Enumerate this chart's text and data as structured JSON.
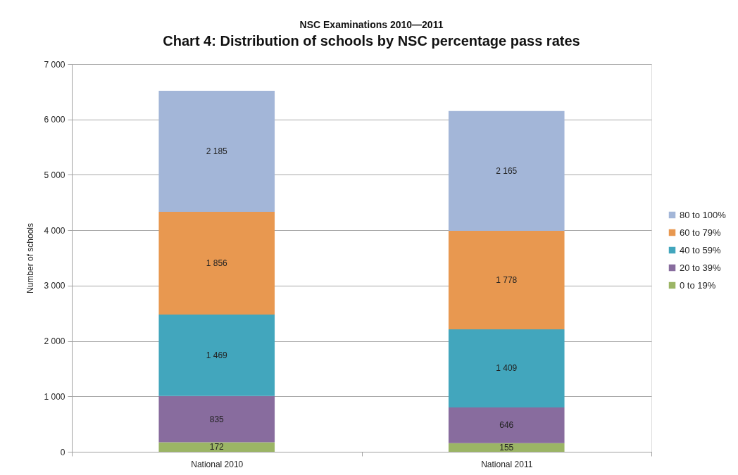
{
  "chart_data": {
    "type": "bar",
    "title": "NSC Examinations 2010—2011",
    "subtitle": "Chart 4: Distribution of schools by NSC percentage pass rates",
    "ylabel": "Number of schools",
    "categories": [
      "National 2010",
      "National 2011"
    ],
    "stacked": true,
    "series": [
      {
        "name": "0 to 19%",
        "color": "#9bb565",
        "values": [
          172,
          155
        ],
        "value_labels": [
          "172",
          "155"
        ]
      },
      {
        "name": "20 to 39%",
        "color": "#886c9e",
        "values": [
          835,
          646
        ],
        "value_labels": [
          "835",
          "646"
        ]
      },
      {
        "name": "40 to 59%",
        "color": "#42a6bd",
        "values": [
          1469,
          1409
        ],
        "value_labels": [
          "1 469",
          "1 409"
        ]
      },
      {
        "name": "60 to 79%",
        "color": "#e89850",
        "values": [
          1856,
          1778
        ],
        "value_labels": [
          "1 856",
          "1 778"
        ]
      },
      {
        "name": "80 to 100%",
        "color": "#a3b6d8",
        "values": [
          2185,
          2165
        ],
        "value_labels": [
          "2 185",
          "2 165"
        ]
      }
    ],
    "ylim": [
      0,
      7000
    ],
    "yticks": [
      0,
      {
        "value": 1000,
        "label": "1 000"
      },
      {
        "value": 2000,
        "label": "2 000"
      },
      {
        "value": 3000,
        "label": "3 000"
      },
      {
        "value": 4000,
        "label": "4 000"
      },
      {
        "value": 5000,
        "label": "5 000"
      },
      {
        "value": 6000,
        "label": "6 000"
      },
      {
        "value": 7000,
        "label": "7 000"
      }
    ],
    "grid": "y",
    "legend": "right"
  }
}
